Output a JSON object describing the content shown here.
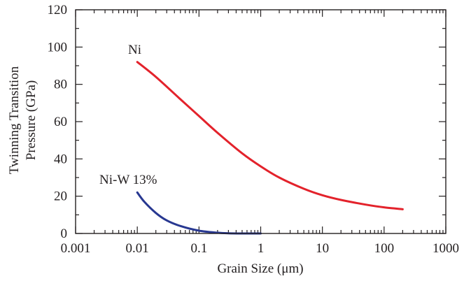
{
  "chart_data": {
    "type": "line",
    "title": "",
    "xlabel": "Grain Size (μm)",
    "ylabel_lines": [
      "Twinning Transition",
      "Pressure (GPa)"
    ],
    "x_scale": "log",
    "xlim": [
      0.001,
      1000
    ],
    "ylim": [
      0,
      120
    ],
    "x_ticks": [
      {
        "value": 0.001,
        "label": "0.001"
      },
      {
        "value": 0.01,
        "label": "0.01"
      },
      {
        "value": 0.1,
        "label": "0.1"
      },
      {
        "value": 1,
        "label": "1"
      },
      {
        "value": 10,
        "label": "10"
      },
      {
        "value": 100,
        "label": "100"
      },
      {
        "value": 1000,
        "label": "1000"
      }
    ],
    "y_ticks": [
      {
        "value": 0,
        "label": "0"
      },
      {
        "value": 20,
        "label": "20"
      },
      {
        "value": 40,
        "label": "40"
      },
      {
        "value": 60,
        "label": "60"
      },
      {
        "value": 80,
        "label": "80"
      },
      {
        "value": 100,
        "label": "100"
      },
      {
        "value": 120,
        "label": "120"
      }
    ],
    "grid": false,
    "series": [
      {
        "name": "Ni",
        "color": "#e3222b",
        "x": [
          0.01,
          0.02,
          0.05,
          0.1,
          0.2,
          0.5,
          1,
          2,
          5,
          10,
          20,
          50,
          100,
          200
        ],
        "y": [
          92,
          84,
          72,
          63,
          54,
          43,
          36,
          30,
          24,
          20.5,
          18,
          15.5,
          14,
          13
        ]
      },
      {
        "name": "Ni-W 13%",
        "color": "#283891",
        "x": [
          0.01,
          0.013,
          0.02,
          0.03,
          0.05,
          0.1,
          0.2,
          0.3,
          0.5,
          0.7,
          1
        ],
        "y": [
          22,
          17,
          11,
          7,
          4,
          1.5,
          0.4,
          0.1,
          0,
          0,
          0
        ]
      }
    ]
  }
}
